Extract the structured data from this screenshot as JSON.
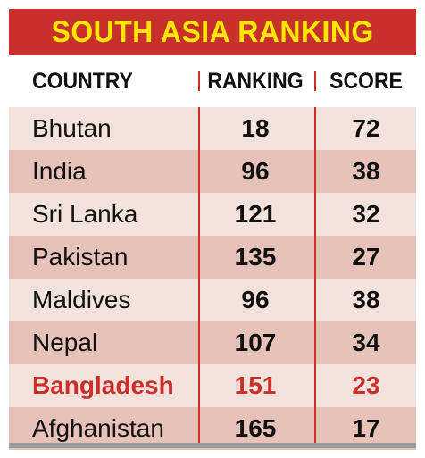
{
  "chart_data": {
    "type": "table",
    "title": "SOUTH ASIA RANKING",
    "columns": [
      "COUNTRY",
      "RANKING",
      "SCORE"
    ],
    "rows": [
      {
        "country": "Bhutan",
        "ranking": 18,
        "score": 72
      },
      {
        "country": "India",
        "ranking": 96,
        "score": 38
      },
      {
        "country": "Sri Lanka",
        "ranking": 121,
        "score": 32
      },
      {
        "country": "Pakistan",
        "ranking": 135,
        "score": 27
      },
      {
        "country": "Maldives",
        "ranking": 96,
        "score": 38
      },
      {
        "country": "Nepal",
        "ranking": 107,
        "score": 34
      },
      {
        "country": "Bangladesh",
        "ranking": 151,
        "score": 23
      },
      {
        "country": "Afghanistan",
        "ranking": 165,
        "score": 17
      }
    ],
    "highlighted_country": "Bangladesh"
  },
  "colors": {
    "title_background": "#c8302c",
    "title_text": "#ffe600",
    "row_light": "#f3e1dc",
    "row_dark": "#e6c2b8",
    "highlight_text": "#c8302c",
    "separator": "#c8302c"
  }
}
